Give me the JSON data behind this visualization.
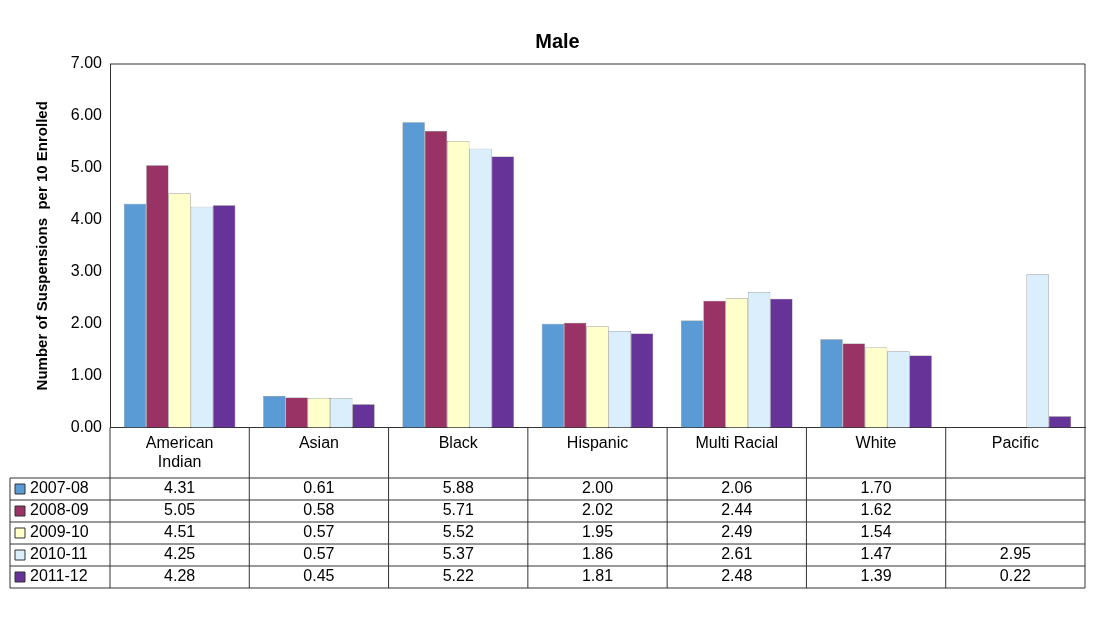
{
  "chart_data": {
    "type": "bar",
    "title": "Male",
    "ylabel": "Number of Suspensions  per 10 Enrolled",
    "categories": [
      "American Indian",
      "Asian",
      "Black",
      "Hispanic",
      "Multi Racial",
      "White",
      "Pacific"
    ],
    "ylim": [
      0,
      7
    ],
    "yticks": [
      {
        "value": 0,
        "label": "0.00"
      },
      {
        "value": 1,
        "label": "1.00"
      },
      {
        "value": 2,
        "label": "2.00"
      },
      {
        "value": 3,
        "label": "3.00"
      },
      {
        "value": 4,
        "label": "4.00"
      },
      {
        "value": 5,
        "label": "5.00"
      },
      {
        "value": 6,
        "label": "6.00"
      },
      {
        "value": 7,
        "label": "7.00"
      }
    ],
    "grid": false,
    "legend": "bottom left",
    "series": [
      {
        "name": "2007-08",
        "color": "#5b9bd5",
        "values": [
          4.31,
          0.61,
          5.88,
          2.0,
          2.06,
          1.7,
          null
        ],
        "value_labels": [
          "4.31",
          "0.61",
          "5.88",
          "2.00",
          "2.06",
          "1.70",
          null
        ]
      },
      {
        "name": "2008-09",
        "color": "#993366",
        "values": [
          5.05,
          0.58,
          5.71,
          2.02,
          2.44,
          1.62,
          null
        ],
        "value_labels": [
          "5.05",
          "0.58",
          "5.71",
          "2.02",
          "2.44",
          "1.62",
          null
        ]
      },
      {
        "name": "2009-10",
        "color": "#ffffcc",
        "values": [
          4.51,
          0.57,
          5.52,
          1.95,
          2.49,
          1.54,
          null
        ],
        "value_labels": [
          "4.51",
          "0.57",
          "5.52",
          "1.95",
          "2.49",
          "1.54",
          null
        ]
      },
      {
        "name": "2010-11",
        "color": "#dbeefc",
        "values": [
          4.25,
          0.57,
          5.37,
          1.86,
          2.61,
          1.47,
          2.95
        ],
        "value_labels": [
          "4.25",
          "0.57",
          "5.37",
          "1.86",
          "2.61",
          "1.47",
          "2.95"
        ]
      },
      {
        "name": "2011-12",
        "color": "#663399",
        "values": [
          4.28,
          0.45,
          5.22,
          1.81,
          2.48,
          1.39,
          0.22
        ],
        "value_labels": [
          "4.28",
          "0.45",
          "5.22",
          "1.81",
          "2.48",
          "1.39",
          "0.22"
        ]
      }
    ]
  }
}
